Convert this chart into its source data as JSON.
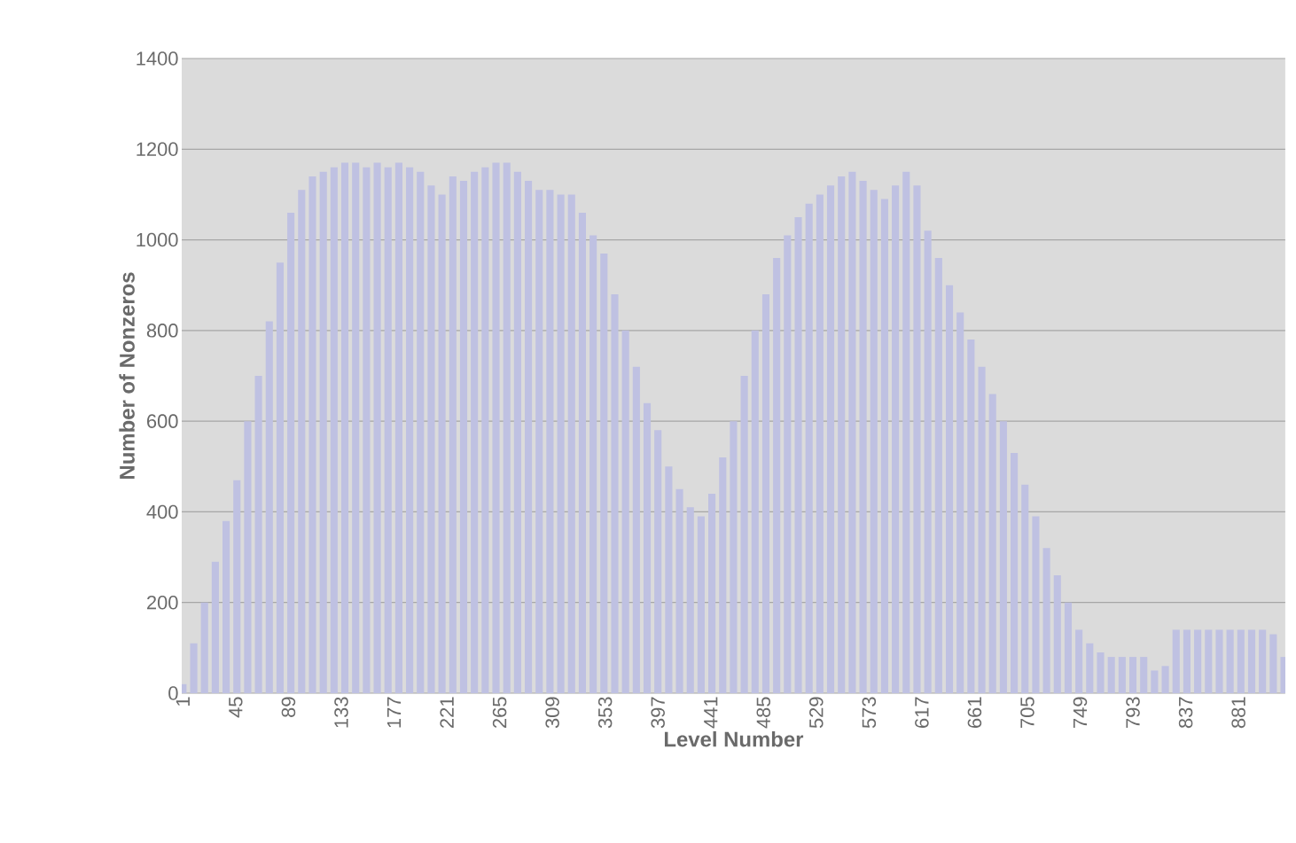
{
  "chart_data": {
    "type": "bar",
    "xlabel": "Level Number",
    "ylabel": "Number of Nonzeros",
    "x": [
      1,
      10,
      19,
      28,
      37,
      46,
      55,
      64,
      73,
      82,
      91,
      100,
      109,
      118,
      127,
      136,
      145,
      154,
      163,
      172,
      181,
      190,
      199,
      208,
      217,
      226,
      235,
      244,
      253,
      262,
      271,
      280,
      289,
      298,
      307,
      316,
      325,
      334,
      343,
      352,
      361,
      370,
      379,
      388,
      397,
      406,
      415,
      424,
      433,
      442,
      451,
      460,
      469,
      478,
      487,
      496,
      505,
      514,
      523,
      532,
      541,
      550,
      559,
      568,
      577,
      586,
      595,
      604,
      613,
      622,
      631,
      640,
      649,
      658,
      667,
      676,
      685,
      694,
      703,
      712,
      721,
      730,
      739,
      748,
      757,
      766,
      775,
      784,
      793,
      802,
      811,
      820,
      829,
      838,
      847,
      856,
      865,
      874,
      883,
      892,
      901,
      910,
      919
    ],
    "values": [
      20,
      110,
      200,
      290,
      380,
      470,
      600,
      700,
      820,
      950,
      1060,
      1110,
      1140,
      1150,
      1160,
      1170,
      1170,
      1160,
      1170,
      1160,
      1170,
      1160,
      1150,
      1120,
      1100,
      1140,
      1130,
      1150,
      1160,
      1170,
      1170,
      1150,
      1130,
      1110,
      1110,
      1100,
      1100,
      1060,
      1010,
      970,
      880,
      800,
      720,
      640,
      580,
      500,
      450,
      410,
      390,
      440,
      520,
      600,
      700,
      800,
      880,
      960,
      1010,
      1050,
      1080,
      1100,
      1120,
      1140,
      1150,
      1130,
      1110,
      1090,
      1120,
      1150,
      1120,
      1020,
      960,
      900,
      840,
      780,
      720,
      660,
      600,
      530,
      460,
      390,
      320,
      260,
      200,
      140,
      110,
      90,
      80,
      80,
      80,
      80,
      50,
      60,
      140,
      140,
      140,
      140,
      140,
      140,
      140,
      140,
      140,
      130,
      80
    ],
    "color": "#bfc1e2",
    "xlim": [
      0,
      920
    ],
    "xticks": [
      1,
      45,
      89,
      133,
      177,
      221,
      265,
      309,
      353,
      397,
      441,
      485,
      529,
      573,
      617,
      661,
      705,
      749,
      793,
      837,
      881
    ],
    "ylim": [
      0,
      1400
    ],
    "yticks": [
      0,
      200,
      400,
      600,
      800,
      1000,
      1200,
      1400
    ],
    "grid": "y"
  }
}
